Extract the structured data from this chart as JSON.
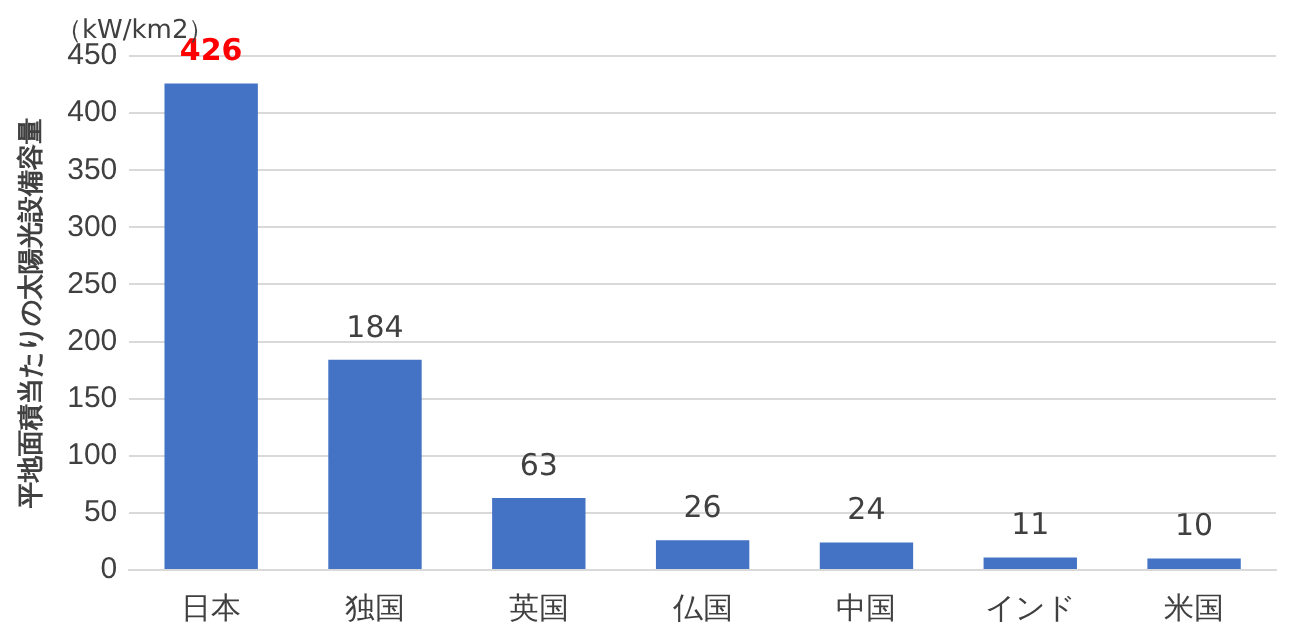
{
  "chart_data": {
    "type": "bar",
    "ylabel": "平地面積当たりの太陽光設備容量",
    "annotations": [
      "（kW/km2）"
    ],
    "categories": [
      "日本",
      "独国",
      "英国",
      "仏国",
      "中国",
      "インド",
      "米国"
    ],
    "values": [
      426,
      184,
      63,
      26,
      24,
      11,
      10
    ],
    "color": "#4472c4",
    "ylim": [
      0,
      450
    ],
    "yticks": [
      0,
      50,
      100,
      150,
      200,
      250,
      300,
      350,
      400,
      450
    ],
    "grid": "y",
    "data_labels": true,
    "legend": false
  }
}
